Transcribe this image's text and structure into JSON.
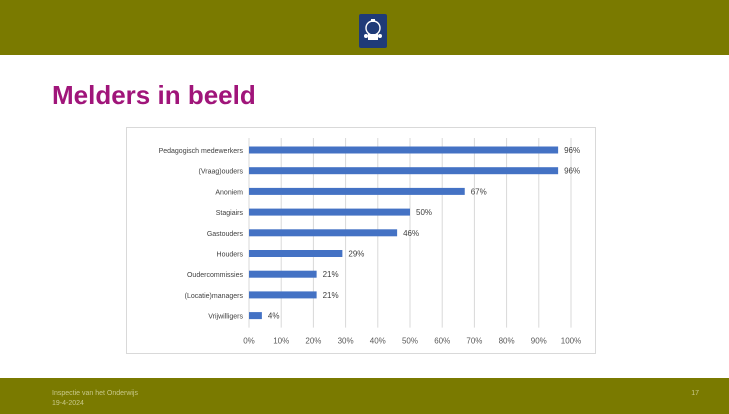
{
  "slide": {
    "title": "Melders in beeld",
    "footer_org": "Inspectie van het Onderwijs",
    "footer_date": "19-4-2024",
    "page_number": "17"
  },
  "colors": {
    "header_bar": "#7a7a00",
    "title": "#a0157a",
    "bar": "#4472c4"
  },
  "icons": {
    "logo": "government-crest-icon"
  },
  "chart_data": {
    "type": "bar",
    "orientation": "horizontal",
    "title": "",
    "xlabel": "",
    "ylabel": "",
    "categories": [
      "Pedagogisch medewerkers",
      "(Vraag)ouders",
      "Anoniem",
      "Stagiairs",
      "Gastouders",
      "Houders",
      "Oudercommissies",
      "(Locatie)managers",
      "Vrijwilligers"
    ],
    "values": [
      96,
      96,
      67,
      50,
      46,
      29,
      21,
      21,
      4
    ],
    "value_labels": [
      "96%",
      "96%",
      "67%",
      "50%",
      "46%",
      "29%",
      "21%",
      "21%",
      "4%"
    ],
    "xlim": [
      0,
      100
    ],
    "x_ticks": [
      0,
      10,
      20,
      30,
      40,
      50,
      60,
      70,
      80,
      90,
      100
    ],
    "x_tick_labels": [
      "0%",
      "10%",
      "20%",
      "30%",
      "40%",
      "50%",
      "60%",
      "70%",
      "80%",
      "90%",
      "100%"
    ],
    "grid": true,
    "legend": "none"
  }
}
